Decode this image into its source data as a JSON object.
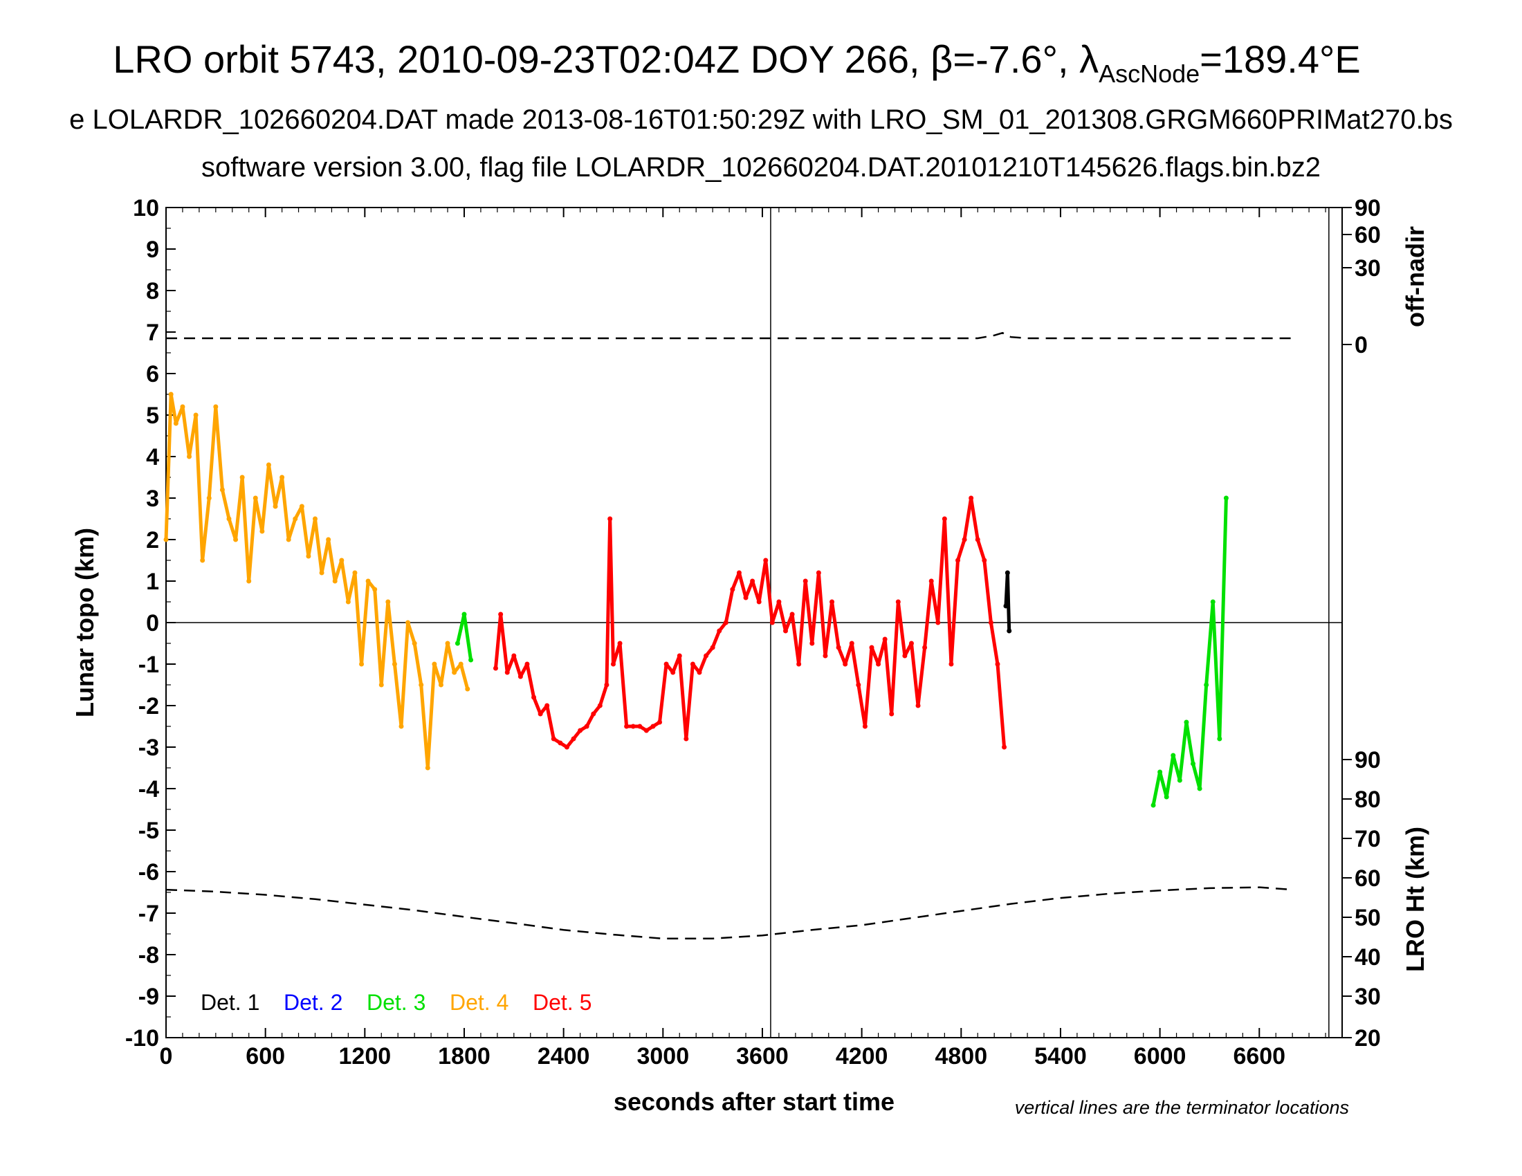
{
  "title": {
    "main": "LRO orbit 5743, 2010-09-23T02:04Z DOY 266, β=-7.6°, λ",
    "sub": "AscNode",
    "tail": "=189.4°E"
  },
  "subtitle1": "e LOLARDR_102660204.DAT made 2013-08-16T01:50:29Z with LRO_SM_01_201308.GRGM660PRIMat270.bs",
  "subtitle2": "software version 3.00, flag file LOLARDR_102660204.DAT.20101210T145626.flags.bin.bz2",
  "footnote": "vertical lines are the terminator locations",
  "chart_data": {
    "type": "scatter",
    "xlabel": "seconds after start time",
    "ylabel": "Lunar topo (km)",
    "y2label_top": "off-nadir",
    "y2label_bottom": "LRO Ht (km)",
    "xlim": [
      0,
      7100
    ],
    "ylim": [
      -10,
      10
    ],
    "xticks": [
      0,
      600,
      1200,
      1800,
      2400,
      3000,
      3600,
      4200,
      4800,
      5400,
      6000,
      6600
    ],
    "yticks": [
      10,
      9,
      8,
      7,
      6,
      5,
      4,
      3,
      2,
      1,
      0,
      -1,
      -2,
      -3,
      -4,
      -5,
      -6,
      -7,
      -8,
      -9,
      -10
    ],
    "offnadir_ticks": [
      {
        "label": "90",
        "topo": 10.0
      },
      {
        "label": "60",
        "topo": 9.35
      },
      {
        "label": "30",
        "topo": 8.55
      },
      {
        "label": "0",
        "topo": 6.7
      }
    ],
    "height_ticks": [
      {
        "label": "90",
        "topo": -3.3
      },
      {
        "label": "80",
        "topo": -4.25
      },
      {
        "label": "70",
        "topo": -5.2
      },
      {
        "label": "60",
        "topo": -6.15
      },
      {
        "label": "50",
        "topo": -7.1
      },
      {
        "label": "40",
        "topo": -8.05
      },
      {
        "label": "30",
        "topo": -9.0
      },
      {
        "label": "20",
        "topo": -10.0
      }
    ],
    "terminators": [
      3650,
      7020
    ],
    "legend": [
      {
        "name": "Det. 1",
        "color": "#000000"
      },
      {
        "name": "Det. 2",
        "color": "#0000ff"
      },
      {
        "name": "Det. 3",
        "color": "#00e000"
      },
      {
        "name": "Det. 4",
        "color": "#ffa500"
      },
      {
        "name": "Det. 5",
        "color": "#ff0000"
      }
    ],
    "offnadir_curve": {
      "x": [
        0,
        1000,
        2000,
        3000,
        4000,
        4900,
        5000,
        5050,
        5100,
        5200,
        6000,
        6800
      ],
      "topo": [
        6.85,
        6.85,
        6.85,
        6.85,
        6.85,
        6.85,
        6.92,
        6.98,
        6.88,
        6.85,
        6.85,
        6.85
      ]
    },
    "height_curve": {
      "x": [
        0,
        300,
        600,
        900,
        1200,
        1500,
        1800,
        2100,
        2400,
        2700,
        3000,
        3300,
        3600,
        3900,
        4200,
        4500,
        4800,
        5100,
        5400,
        5700,
        6000,
        6300,
        6600,
        6800
      ],
      "height_km": [
        57.0,
        56.5,
        55.7,
        54.6,
        53.2,
        51.8,
        50.1,
        48.5,
        46.8,
        45.6,
        44.6,
        44.6,
        45.4,
        46.8,
        48.0,
        49.8,
        51.6,
        53.4,
        54.9,
        56.0,
        56.8,
        57.4,
        57.6,
        57.0
      ]
    },
    "series": [
      {
        "name": "Det. 4",
        "color": "#ffa500",
        "segments": [
          {
            "x": [
              0,
              30,
              60,
              100,
              140,
              180,
              220,
              260,
              300,
              340,
              380,
              420,
              460,
              500,
              540,
              580,
              620,
              660,
              700,
              740,
              780,
              820,
              860,
              900,
              940,
              980,
              1020,
              1060,
              1100,
              1140,
              1180,
              1220,
              1260,
              1300,
              1340,
              1380,
              1420,
              1460,
              1500,
              1540,
              1580,
              1620,
              1660,
              1700,
              1740,
              1780,
              1820
            ],
            "y": [
              2.0,
              5.5,
              4.8,
              5.2,
              4.0,
              5.0,
              1.5,
              3.0,
              5.2,
              3.2,
              2.5,
              2.0,
              3.5,
              1.0,
              3.0,
              2.2,
              3.8,
              2.8,
              3.5,
              2.0,
              2.5,
              2.8,
              1.6,
              2.5,
              1.2,
              2.0,
              1.0,
              1.5,
              0.5,
              1.2,
              -1.0,
              1.0,
              0.8,
              -1.5,
              0.5,
              -1.0,
              -2.5,
              0.0,
              -0.5,
              -1.5,
              -3.5,
              -1.0,
              -1.5,
              -0.5,
              -1.2,
              -1.0,
              -1.6
            ]
          }
        ]
      },
      {
        "name": "Det. 3",
        "color": "#00e000",
        "segments": [
          {
            "x": [
              1760,
              1800,
              1840
            ],
            "y": [
              -0.5,
              0.2,
              -0.9
            ]
          },
          {
            "x": [
              5960,
              6000,
              6040,
              6080,
              6120,
              6160,
              6200,
              6240,
              6280,
              6320,
              6360,
              6400
            ],
            "y": [
              -4.4,
              -3.6,
              -4.2,
              -3.2,
              -3.8,
              -2.4,
              -3.4,
              -4.0,
              -1.5,
              0.5,
              -2.8,
              3.0
            ]
          }
        ]
      },
      {
        "name": "Det. 5",
        "color": "#ff0000",
        "segments": [
          {
            "x": [
              1990,
              2020,
              2060,
              2100,
              2140,
              2180,
              2220,
              2260,
              2300,
              2340,
              2380,
              2420,
              2460,
              2500,
              2540,
              2580,
              2620,
              2660,
              2680,
              2700,
              2740,
              2780,
              2820,
              2860,
              2900,
              2940,
              2980,
              3020,
              3060,
              3100,
              3140,
              3180,
              3220,
              3260,
              3300,
              3340,
              3380,
              3420,
              3460,
              3500,
              3540,
              3580,
              3620,
              3660,
              3700,
              3740,
              3780,
              3820,
              3860,
              3900,
              3940,
              3980,
              4020,
              4060,
              4100,
              4140,
              4180,
              4220,
              4260,
              4300,
              4340,
              4380,
              4420,
              4460,
              4500,
              4540,
              4580,
              4620,
              4660,
              4700,
              4740,
              4780,
              4820,
              4860,
              4900,
              4940,
              4980,
              5020,
              5060
            ],
            "y": [
              -1.1,
              0.2,
              -1.2,
              -0.8,
              -1.3,
              -1.0,
              -1.8,
              -2.2,
              -2.0,
              -2.8,
              -2.9,
              -3.0,
              -2.8,
              -2.6,
              -2.5,
              -2.2,
              -2.0,
              -1.5,
              2.5,
              -1.0,
              -0.5,
              -2.5,
              -2.5,
              -2.5,
              -2.6,
              -2.5,
              -2.4,
              -1.0,
              -1.2,
              -0.8,
              -2.8,
              -1.0,
              -1.2,
              -0.8,
              -0.6,
              -0.2,
              0.0,
              0.8,
              1.2,
              0.6,
              1.0,
              0.5,
              1.5,
              0.0,
              0.5,
              -0.2,
              0.2,
              -1.0,
              1.0,
              -0.5,
              1.2,
              -0.8,
              0.5,
              -0.6,
              -1.0,
              -0.5,
              -1.5,
              -2.5,
              -0.6,
              -1.0,
              -0.4,
              -2.2,
              0.5,
              -0.8,
              -0.5,
              -2.0,
              -0.6,
              1.0,
              0.0,
              2.5,
              -1.0,
              1.5,
              2.0,
              3.0,
              2.0,
              1.5,
              0.0,
              -1.0,
              -3.0
            ]
          }
        ]
      },
      {
        "name": "Det. 1",
        "color": "#000000",
        "segments": [
          {
            "x": [
              5070,
              5080,
              5090
            ],
            "y": [
              0.4,
              1.2,
              -0.2
            ]
          }
        ]
      }
    ]
  }
}
